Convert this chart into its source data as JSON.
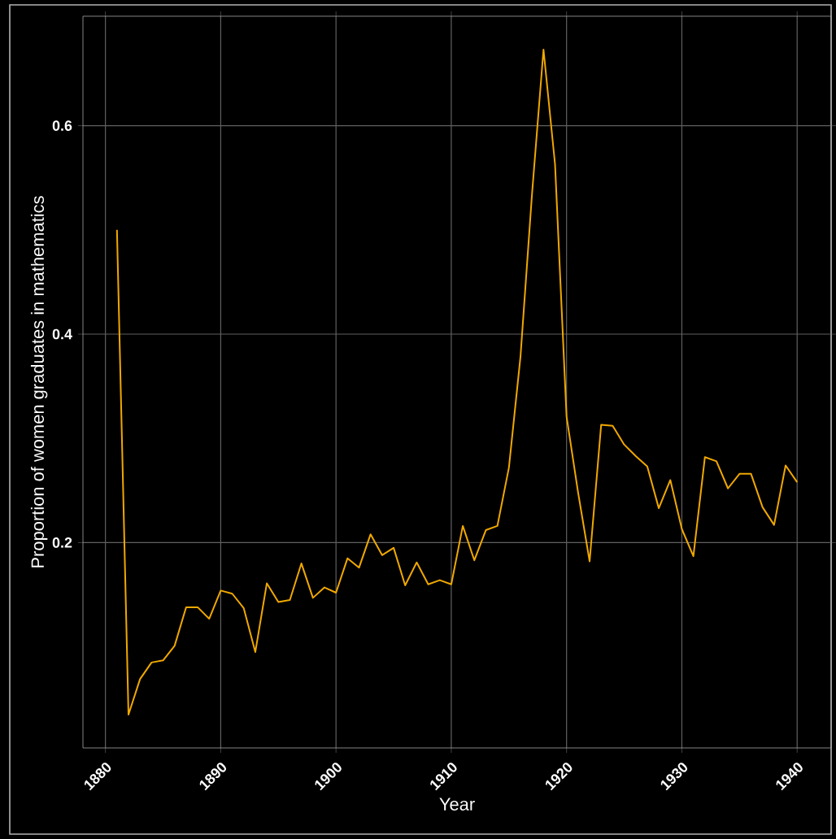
{
  "chart_data": {
    "type": "line",
    "xlabel": "Year",
    "ylabel": "Proportion of women graduates in mathematics",
    "x": [
      1881,
      1882,
      1883,
      1884,
      1885,
      1886,
      1887,
      1888,
      1889,
      1890,
      1891,
      1892,
      1893,
      1894,
      1895,
      1896,
      1897,
      1898,
      1899,
      1900,
      1901,
      1902,
      1903,
      1904,
      1905,
      1906,
      1907,
      1908,
      1909,
      1910,
      1911,
      1912,
      1913,
      1914,
      1915,
      1916,
      1917,
      1918,
      1919,
      1920,
      1921,
      1922,
      1923,
      1924,
      1925,
      1926,
      1927,
      1928,
      1929,
      1930,
      1931,
      1932,
      1933,
      1934,
      1935,
      1936,
      1937,
      1938,
      1939,
      1940
    ],
    "values": [
      0.5,
      0.035,
      0.069,
      0.085,
      0.087,
      0.101,
      0.138,
      0.138,
      0.127,
      0.154,
      0.151,
      0.137,
      0.095,
      0.161,
      0.143,
      0.145,
      0.18,
      0.147,
      0.157,
      0.152,
      0.185,
      0.176,
      0.208,
      0.188,
      0.195,
      0.159,
      0.181,
      0.16,
      0.164,
      0.16,
      0.216,
      0.183,
      0.212,
      0.216,
      0.272,
      0.378,
      0.534,
      0.673,
      0.563,
      0.321,
      0.248,
      0.182,
      0.313,
      0.312,
      0.294,
      0.283,
      0.273,
      0.233,
      0.26,
      0.213,
      0.187,
      0.282,
      0.278,
      0.252,
      0.266,
      0.266,
      0.234,
      0.217,
      0.274,
      0.258
    ],
    "color": "#f0a800",
    "xlim": [
      1878.05,
      1942.95
    ],
    "ylim": [
      0.003,
      0.705
    ],
    "xticks": [
      1880,
      1890,
      1900,
      1910,
      1920,
      1930,
      1940
    ],
    "yticks": [
      0.2,
      0.4,
      0.6
    ],
    "grid": true,
    "marker": "none",
    "line_style": "solid"
  }
}
